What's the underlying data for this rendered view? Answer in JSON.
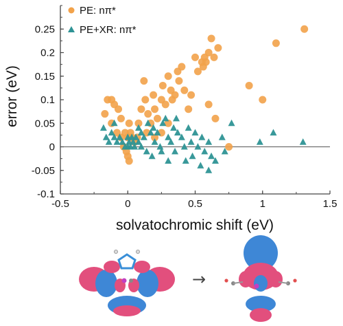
{
  "chart_data": {
    "type": "scatter",
    "xlabel": "solvatochromic shift (eV)",
    "ylabel": "error (eV)",
    "xlim": [
      -0.5,
      1.5
    ],
    "ylim": [
      -0.1,
      0.3
    ],
    "x_ticks": [
      -0.5,
      0,
      0.5,
      1,
      1.5
    ],
    "x_tick_labels": [
      "-0.5",
      "0",
      "0.5",
      "1",
      "1.5"
    ],
    "y_ticks": [
      -0.1,
      -0.05,
      0,
      0.05,
      0.1,
      0.15,
      0.2,
      0.25
    ],
    "y_tick_labels": [
      "-0.1",
      "-0.05",
      "0",
      "0.05",
      "0.1",
      "0.15",
      "0.2",
      "0.25"
    ],
    "zero_line": true,
    "grid": false,
    "legend_position": "top-left",
    "series": [
      {
        "name": "PE: nπ*",
        "marker": "circle",
        "color": "#F2A24A",
        "points": [
          [
            -0.17,
            0.07
          ],
          [
            -0.15,
            0.1
          ],
          [
            -0.12,
            0.1
          ],
          [
            -0.1,
            0.09
          ],
          [
            -0.07,
            0.08
          ],
          [
            -0.05,
            0.06
          ],
          [
            -0.12,
            0.05
          ],
          [
            -0.08,
            0.03
          ],
          [
            -0.05,
            0.02
          ],
          [
            -0.02,
            0.03
          ],
          [
            0.0,
            0.02
          ],
          [
            0.01,
            0.05
          ],
          [
            0.02,
            0.03
          ],
          [
            0.03,
            0.02
          ],
          [
            -0.03,
            0.0
          ],
          [
            -0.01,
            -0.01
          ],
          [
            0.0,
            -0.02
          ],
          [
            0.01,
            -0.03
          ],
          [
            0.05,
            0.01
          ],
          [
            0.07,
            0.02
          ],
          [
            0.08,
            0.05
          ],
          [
            0.1,
            0.08
          ],
          [
            0.12,
            0.14
          ],
          [
            0.13,
            0.1
          ],
          [
            0.15,
            0.07
          ],
          [
            0.17,
            0.05
          ],
          [
            0.14,
            0.03
          ],
          [
            0.19,
            0.11
          ],
          [
            0.2,
            0.08
          ],
          [
            0.22,
            0.06
          ],
          [
            0.25,
            0.1
          ],
          [
            0.26,
            0.13
          ],
          [
            0.28,
            0.09
          ],
          [
            0.3,
            0.15
          ],
          [
            0.32,
            0.12
          ],
          [
            0.33,
            0.1
          ],
          [
            0.35,
            0.11
          ],
          [
            0.37,
            0.16
          ],
          [
            0.38,
            0.14
          ],
          [
            0.4,
            0.17
          ],
          [
            0.42,
            0.12
          ],
          [
            0.45,
            0.08
          ],
          [
            0.47,
            0.11
          ],
          [
            0.5,
            0.19
          ],
          [
            0.52,
            0.16
          ],
          [
            0.55,
            0.18
          ],
          [
            0.56,
            0.17
          ],
          [
            0.57,
            0.19
          ],
          [
            0.58,
            0.18
          ],
          [
            0.6,
            0.2
          ],
          [
            0.62,
            0.23
          ],
          [
            0.64,
            0.19
          ],
          [
            0.67,
            0.21
          ],
          [
            0.6,
            0.09
          ],
          [
            0.65,
            0.06
          ],
          [
            0.75,
            0.0
          ],
          [
            0.9,
            0.13
          ],
          [
            1.0,
            0.1
          ],
          [
            1.1,
            0.22
          ],
          [
            1.31,
            0.25
          ],
          [
            0.2,
            0.02
          ],
          [
            0.25,
            0.03
          ],
          [
            0.3,
            0.05
          ]
        ]
      },
      {
        "name": "PE+XR: nπ*",
        "marker": "triangle",
        "color": "#2E9395",
        "points": [
          [
            -0.18,
            0.04
          ],
          [
            -0.16,
            0.02
          ],
          [
            -0.14,
            0.01
          ],
          [
            -0.12,
            0.03
          ],
          [
            -0.1,
            0.02
          ],
          [
            -0.08,
            0.01
          ],
          [
            -0.06,
            0.02
          ],
          [
            -0.04,
            0.01
          ],
          [
            -0.02,
            0.0
          ],
          [
            0.0,
            0.02
          ],
          [
            0.01,
            0.01
          ],
          [
            0.02,
            0.0
          ],
          [
            0.03,
            0.02
          ],
          [
            0.04,
            0.01
          ],
          [
            0.05,
            0.0
          ],
          [
            0.06,
            0.02
          ],
          [
            0.08,
            0.01
          ],
          [
            0.1,
            0.0
          ],
          [
            0.1,
            0.03
          ],
          [
            0.12,
            0.02
          ],
          [
            0.14,
            -0.01
          ],
          [
            0.15,
            0.05
          ],
          [
            0.17,
            0.03
          ],
          [
            0.19,
            0.04
          ],
          [
            0.2,
            0.01
          ],
          [
            0.22,
            0.03
          ],
          [
            0.24,
            0.0
          ],
          [
            0.25,
            -0.01
          ],
          [
            0.26,
            0.05
          ],
          [
            0.28,
            0.06
          ],
          [
            0.3,
            0.02
          ],
          [
            0.32,
            0.01
          ],
          [
            0.34,
            0.04
          ],
          [
            0.35,
            -0.01
          ],
          [
            0.37,
            0.03
          ],
          [
            0.4,
            0.02
          ],
          [
            0.42,
            0.0
          ],
          [
            0.43,
            -0.03
          ],
          [
            0.45,
            0.04
          ],
          [
            0.47,
            0.01
          ],
          [
            0.48,
            -0.02
          ],
          [
            0.5,
            0.03
          ],
          [
            0.52,
            0.0
          ],
          [
            0.54,
            -0.04
          ],
          [
            0.55,
            0.02
          ],
          [
            0.57,
            -0.01
          ],
          [
            0.6,
            0.01
          ],
          [
            0.62,
            -0.02
          ],
          [
            0.65,
            -0.03
          ],
          [
            0.7,
            0.02
          ],
          [
            0.72,
            -0.01
          ],
          [
            0.77,
            0.05
          ],
          [
            0.98,
            0.01
          ],
          [
            1.08,
            0.03
          ],
          [
            1.3,
            0.01
          ],
          [
            0.18,
            -0.02
          ],
          [
            0.3,
            -0.03
          ],
          [
            0.08,
            0.04
          ],
          [
            -0.1,
            0.05
          ],
          [
            0.0,
            0.0
          ],
          [
            0.36,
            0.06
          ],
          [
            0.6,
            -0.05
          ]
        ]
      }
    ]
  },
  "figure": {
    "arrow": "→"
  }
}
